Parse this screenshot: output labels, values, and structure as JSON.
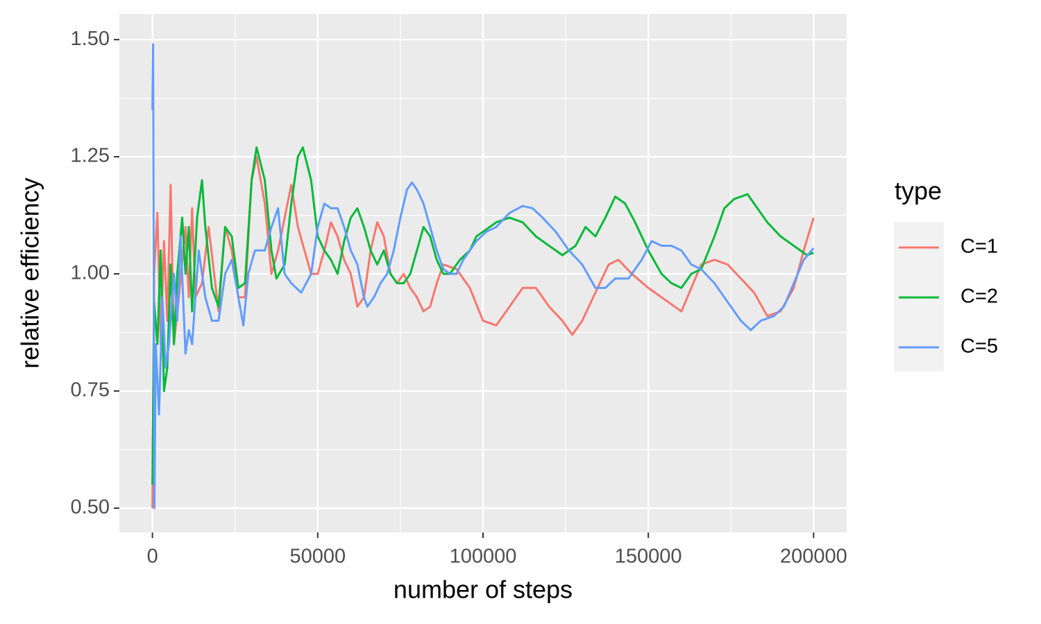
{
  "chart_data": {
    "type": "line",
    "x_label": "number of steps",
    "y_label": "relative efficiency",
    "xlim": [
      -10000,
      210000
    ],
    "ylim": [
      0.448,
      1.555
    ],
    "xticks": [
      0,
      50000,
      100000,
      150000,
      200000
    ],
    "yticks": [
      {
        "value": 0.5,
        "label": "0.50"
      },
      0.75,
      {
        "value": 1.0,
        "label": "1.00"
      },
      1.25,
      {
        "value": 1.5,
        "label": "1.50"
      }
    ],
    "grid": true,
    "legend_title": "type",
    "legend_position": "right",
    "series": [
      {
        "name": "C=1",
        "color": "#F8766D",
        "x": [
          0,
          500,
          1500,
          2500,
          3500,
          4500,
          5500,
          6500,
          8000,
          10000,
          11000,
          12000,
          13000,
          15000,
          17000,
          20000,
          22000,
          24000,
          26000,
          28000,
          30000,
          31500,
          34000,
          36000,
          38000,
          40000,
          42000,
          44000,
          46000,
          48000,
          50000,
          52000,
          54000,
          56000,
          58000,
          60000,
          62000,
          64000,
          66000,
          68000,
          70000,
          72000,
          74000,
          76000,
          78000,
          80000,
          82000,
          84000,
          86000,
          88000,
          92000,
          96000,
          100000,
          104000,
          108000,
          112000,
          116000,
          120000,
          124000,
          127000,
          130000,
          134000,
          138000,
          141000,
          145000,
          150000,
          154000,
          158000,
          160000,
          163000,
          166000,
          170000,
          174000,
          178000,
          182000,
          186000,
          190000,
          194000,
          197000,
          200000
        ],
        "values": [
          0.5,
          1.0,
          1.13,
          0.85,
          1.07,
          0.9,
          1.19,
          0.85,
          0.95,
          1.1,
          0.95,
          1.14,
          0.95,
          0.98,
          1.1,
          0.92,
          1.1,
          1.05,
          0.95,
          0.95,
          1.2,
          1.25,
          1.15,
          1.0,
          1.05,
          1.12,
          1.19,
          1.1,
          1.05,
          1.0,
          1.0,
          1.05,
          1.11,
          1.08,
          1.03,
          1.0,
          0.93,
          0.95,
          1.05,
          1.11,
          1.08,
          1.0,
          0.98,
          1.0,
          0.97,
          0.95,
          0.92,
          0.93,
          0.98,
          1.02,
          1.01,
          0.97,
          0.9,
          0.89,
          0.93,
          0.97,
          0.97,
          0.93,
          0.9,
          0.87,
          0.9,
          0.96,
          1.02,
          1.03,
          1.0,
          0.97,
          0.95,
          0.93,
          0.92,
          0.97,
          1.02,
          1.03,
          1.02,
          0.99,
          0.96,
          0.91,
          0.92,
          0.97,
          1.05,
          1.12
        ]
      },
      {
        "name": "C=2",
        "color": "#00BA38",
        "x": [
          0,
          500,
          1500,
          2500,
          3500,
          4500,
          5500,
          6500,
          7500,
          9000,
          10000,
          11000,
          12000,
          13500,
          15000,
          16000,
          18000,
          20000,
          22000,
          24000,
          26000,
          28000,
          30000,
          31500,
          34000,
          36000,
          37500,
          40000,
          42000,
          44000,
          45500,
          48000,
          50000,
          52000,
          54000,
          56000,
          58000,
          60000,
          62000,
          64000,
          66000,
          68000,
          70000,
          72000,
          74000,
          76000,
          78000,
          80000,
          82000,
          84000,
          86000,
          88000,
          90000,
          93000,
          96000,
          98000,
          100000,
          104000,
          108000,
          112000,
          116000,
          120000,
          124000,
          128000,
          131000,
          134000,
          137000,
          140000,
          143000,
          146000,
          150000,
          154000,
          157000,
          160000,
          163000,
          166000,
          170000,
          173000,
          176000,
          180000,
          183000,
          186000,
          190000,
          194000,
          198000,
          200000
        ],
        "values": [
          0.55,
          0.94,
          0.85,
          1.05,
          0.75,
          0.8,
          1.02,
          0.85,
          1.0,
          1.12,
          1.0,
          1.1,
          0.92,
          1.12,
          1.2,
          1.1,
          0.97,
          0.93,
          1.1,
          1.08,
          0.97,
          0.98,
          1.2,
          1.27,
          1.2,
          1.05,
          0.99,
          1.02,
          1.15,
          1.25,
          1.27,
          1.2,
          1.08,
          1.05,
          1.03,
          1.0,
          1.07,
          1.12,
          1.14,
          1.1,
          1.05,
          1.02,
          1.05,
          1.0,
          0.98,
          0.98,
          1.0,
          1.05,
          1.1,
          1.08,
          1.03,
          1.0,
          1.0,
          1.03,
          1.05,
          1.08,
          1.09,
          1.11,
          1.12,
          1.11,
          1.08,
          1.06,
          1.04,
          1.06,
          1.1,
          1.08,
          1.12,
          1.165,
          1.15,
          1.11,
          1.05,
          1.0,
          0.98,
          0.97,
          1.0,
          1.01,
          1.08,
          1.14,
          1.16,
          1.17,
          1.14,
          1.11,
          1.08,
          1.06,
          1.04,
          1.045
        ]
      },
      {
        "name": "C=5",
        "color": "#619CFF",
        "x": [
          0,
          200,
          600,
          1000,
          2000,
          3000,
          4000,
          5000,
          6500,
          7500,
          8500,
          10000,
          11000,
          12000,
          14000,
          16000,
          18000,
          20000,
          22000,
          24000,
          26000,
          27500,
          29000,
          31000,
          34000,
          36000,
          38000,
          40000,
          42000,
          45000,
          48000,
          50000,
          52000,
          54000,
          56000,
          58000,
          60000,
          62000,
          64000,
          65000,
          67000,
          69000,
          71000,
          73000,
          75000,
          77000,
          78500,
          80000,
          82000,
          84000,
          86000,
          88000,
          90000,
          92000,
          94000,
          96000,
          98000,
          101000,
          104000,
          108000,
          112000,
          115000,
          118000,
          122000,
          126000,
          130000,
          134000,
          137000,
          140000,
          144000,
          148000,
          151000,
          154000,
          157000,
          160000,
          163000,
          166000,
          170000,
          174000,
          178000,
          181000,
          184000,
          188000,
          191000,
          194000,
          197000,
          200000
        ],
        "values": [
          1.35,
          1.49,
          0.5,
          0.85,
          0.7,
          0.95,
          0.8,
          0.85,
          1.0,
          0.9,
          1.08,
          0.83,
          0.88,
          0.85,
          1.05,
          0.95,
          0.9,
          0.9,
          1.0,
          1.03,
          0.95,
          0.89,
          1.0,
          1.05,
          1.05,
          1.1,
          1.14,
          1.0,
          0.98,
          0.96,
          1.0,
          1.1,
          1.15,
          1.14,
          1.14,
          1.1,
          1.05,
          1.02,
          0.95,
          0.93,
          0.95,
          0.98,
          1.0,
          1.05,
          1.12,
          1.18,
          1.195,
          1.18,
          1.15,
          1.1,
          1.05,
          1.01,
          1.0,
          1.0,
          1.03,
          1.05,
          1.07,
          1.09,
          1.1,
          1.13,
          1.145,
          1.14,
          1.12,
          1.09,
          1.05,
          1.02,
          0.97,
          0.97,
          0.99,
          0.99,
          1.03,
          1.07,
          1.06,
          1.06,
          1.05,
          1.02,
          1.01,
          0.98,
          0.94,
          0.9,
          0.88,
          0.9,
          0.91,
          0.93,
          0.98,
          1.03,
          1.055
        ]
      }
    ]
  }
}
